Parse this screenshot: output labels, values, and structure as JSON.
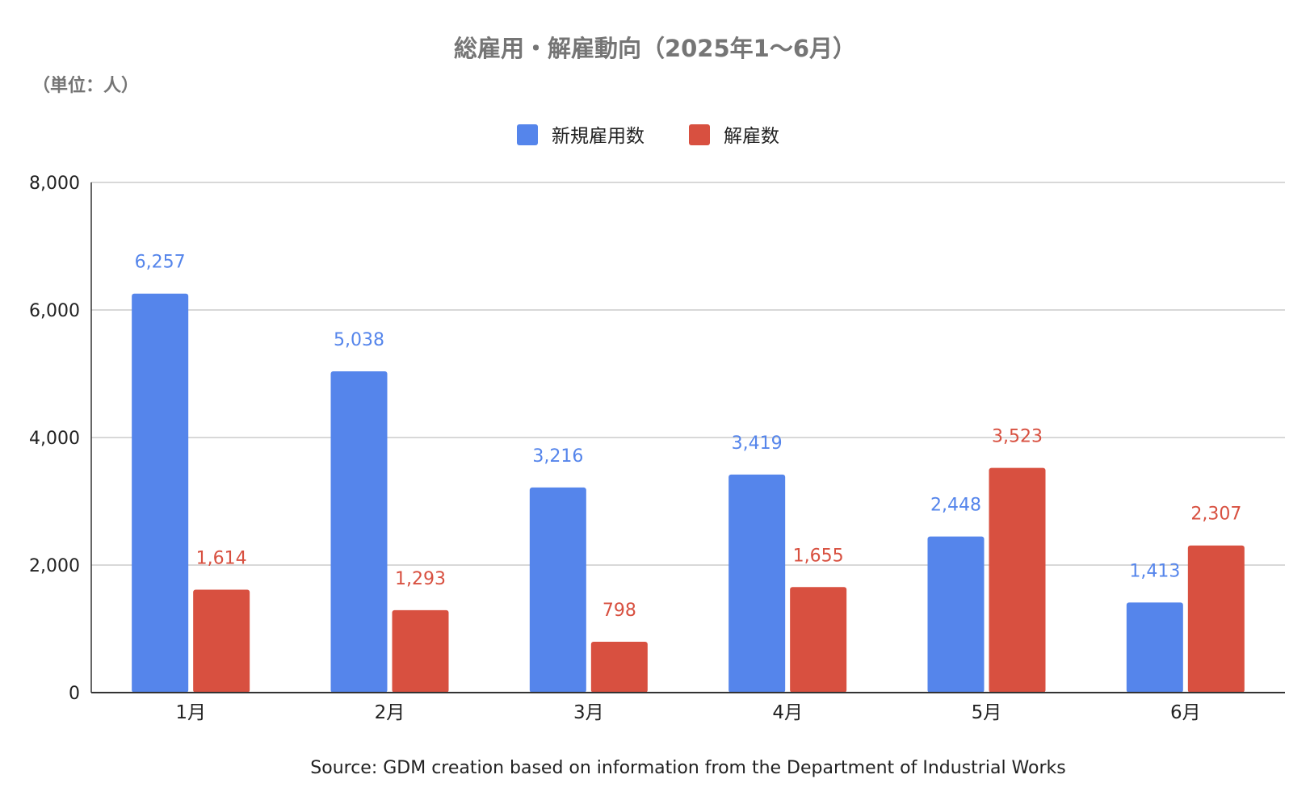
{
  "chart_data": {
    "type": "bar",
    "title": "総雇用・解雇動向（2025年1〜6月）",
    "unit_label": "（単位：人）",
    "categories": [
      "1月",
      "2月",
      "3月",
      "4月",
      "5月",
      "6月"
    ],
    "series": [
      {
        "name": "新規雇用数",
        "color": "#5585EB",
        "values": [
          6257,
          5038,
          3216,
          3419,
          2448,
          1413
        ],
        "labels": [
          "6,257",
          "5,038",
          "3,216",
          "3,419",
          "2,448",
          "1,413"
        ]
      },
      {
        "name": "解雇数",
        "color": "#D85040",
        "values": [
          1614,
          1293,
          798,
          1655,
          3523,
          2307
        ],
        "labels": [
          "1,614",
          "1,293",
          "798",
          "1,655",
          "3,523",
          "2,307"
        ]
      }
    ],
    "ylim": [
      0,
      8000
    ],
    "yticks": [
      0,
      2000,
      4000,
      6000,
      8000
    ],
    "ytick_labels": [
      "0",
      "2,000",
      "4,000",
      "6,000",
      "8,000"
    ],
    "grid": true,
    "legend": "top-center",
    "source": "Source: GDM creation based on information from the Department of Industrial Works"
  }
}
